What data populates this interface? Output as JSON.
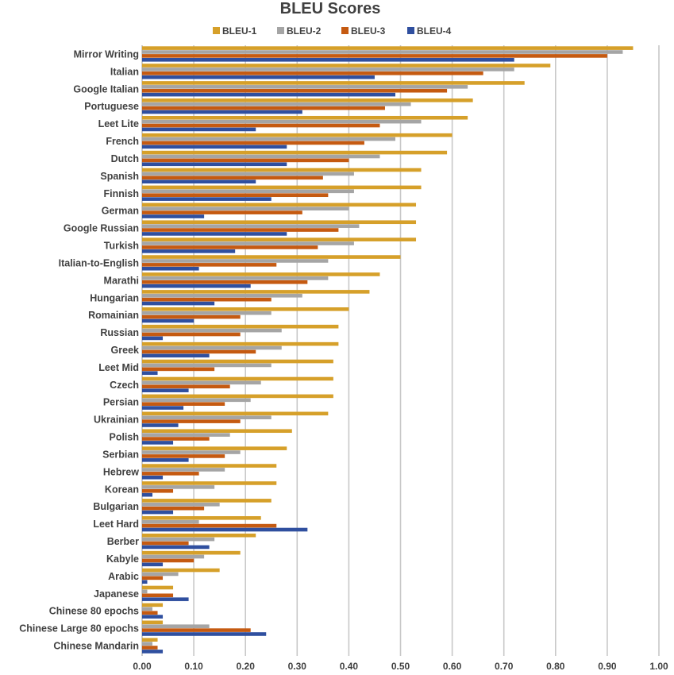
{
  "chart_data": {
    "type": "bar",
    "orientation": "horizontal",
    "title": "BLEU Scores",
    "xlabel": "",
    "ylabel": "",
    "xlim": [
      0,
      1
    ],
    "ticks": [
      "0.00",
      "0.10",
      "0.20",
      "0.30",
      "0.40",
      "0.50",
      "0.60",
      "0.70",
      "0.80",
      "0.90",
      "1.00"
    ],
    "tick_values": [
      0,
      0.1,
      0.2,
      0.3,
      0.4,
      0.5,
      0.6,
      0.7,
      0.8,
      0.9,
      1.0
    ],
    "grid": true,
    "legend_position": "top",
    "categories": [
      "Mirror Writing",
      "Italian",
      "Google Italian",
      "Portuguese",
      "Leet Lite",
      "French",
      "Dutch",
      "Spanish",
      "Finnish",
      "German",
      "Google Russian",
      "Turkish",
      "Italian-to-English",
      "Marathi",
      "Hungarian",
      "Romainian",
      "Russian",
      "Greek",
      "Leet Mid",
      "Czech",
      "Persian",
      "Ukrainian",
      "Polish",
      "Serbian",
      "Hebrew",
      "Korean",
      "Bulgarian",
      "Leet Hard",
      "Berber",
      "Kabyle",
      "Arabic",
      "Japanese",
      "Chinese 80 epochs",
      "Chinese Large 80 epochs",
      "Chinese Mandarin"
    ],
    "series": [
      {
        "name": "BLEU-1",
        "color": "#D6A02A",
        "values": [
          0.95,
          0.79,
          0.74,
          0.64,
          0.63,
          0.6,
          0.59,
          0.54,
          0.54,
          0.53,
          0.53,
          0.53,
          0.5,
          0.46,
          0.44,
          0.4,
          0.38,
          0.38,
          0.37,
          0.37,
          0.37,
          0.36,
          0.29,
          0.28,
          0.26,
          0.26,
          0.25,
          0.23,
          0.22,
          0.19,
          0.15,
          0.06,
          0.04,
          0.04,
          0.03
        ]
      },
      {
        "name": "BLEU-2",
        "color": "#A5A5A5",
        "values": [
          0.93,
          0.72,
          0.63,
          0.52,
          0.54,
          0.49,
          0.46,
          0.41,
          0.41,
          0.4,
          0.42,
          0.41,
          0.36,
          0.36,
          0.31,
          0.25,
          0.27,
          0.27,
          0.25,
          0.23,
          0.21,
          0.25,
          0.17,
          0.19,
          0.16,
          0.14,
          0.15,
          0.11,
          0.14,
          0.12,
          0.07,
          0.01,
          0.02,
          0.13,
          0.02
        ]
      },
      {
        "name": "BLEU-3",
        "color": "#C55A11",
        "values": [
          0.9,
          0.66,
          0.59,
          0.47,
          0.46,
          0.43,
          0.4,
          0.35,
          0.36,
          0.31,
          0.38,
          0.34,
          0.26,
          0.32,
          0.25,
          0.19,
          0.19,
          0.22,
          0.14,
          0.17,
          0.16,
          0.19,
          0.13,
          0.16,
          0.11,
          0.06,
          0.12,
          0.26,
          0.09,
          0.1,
          0.04,
          0.06,
          0.03,
          0.21,
          0.03
        ]
      },
      {
        "name": "BLEU-4",
        "color": "#2F4F9F",
        "values": [
          0.72,
          0.45,
          0.49,
          0.31,
          0.22,
          0.28,
          0.28,
          0.22,
          0.25,
          0.12,
          0.28,
          0.18,
          0.11,
          0.21,
          0.14,
          0.1,
          0.04,
          0.13,
          0.03,
          0.09,
          0.08,
          0.07,
          0.06,
          0.09,
          0.04,
          0.02,
          0.06,
          0.32,
          0.13,
          0.04,
          0.01,
          0.09,
          0.04,
          0.24,
          0.04
        ]
      }
    ]
  }
}
